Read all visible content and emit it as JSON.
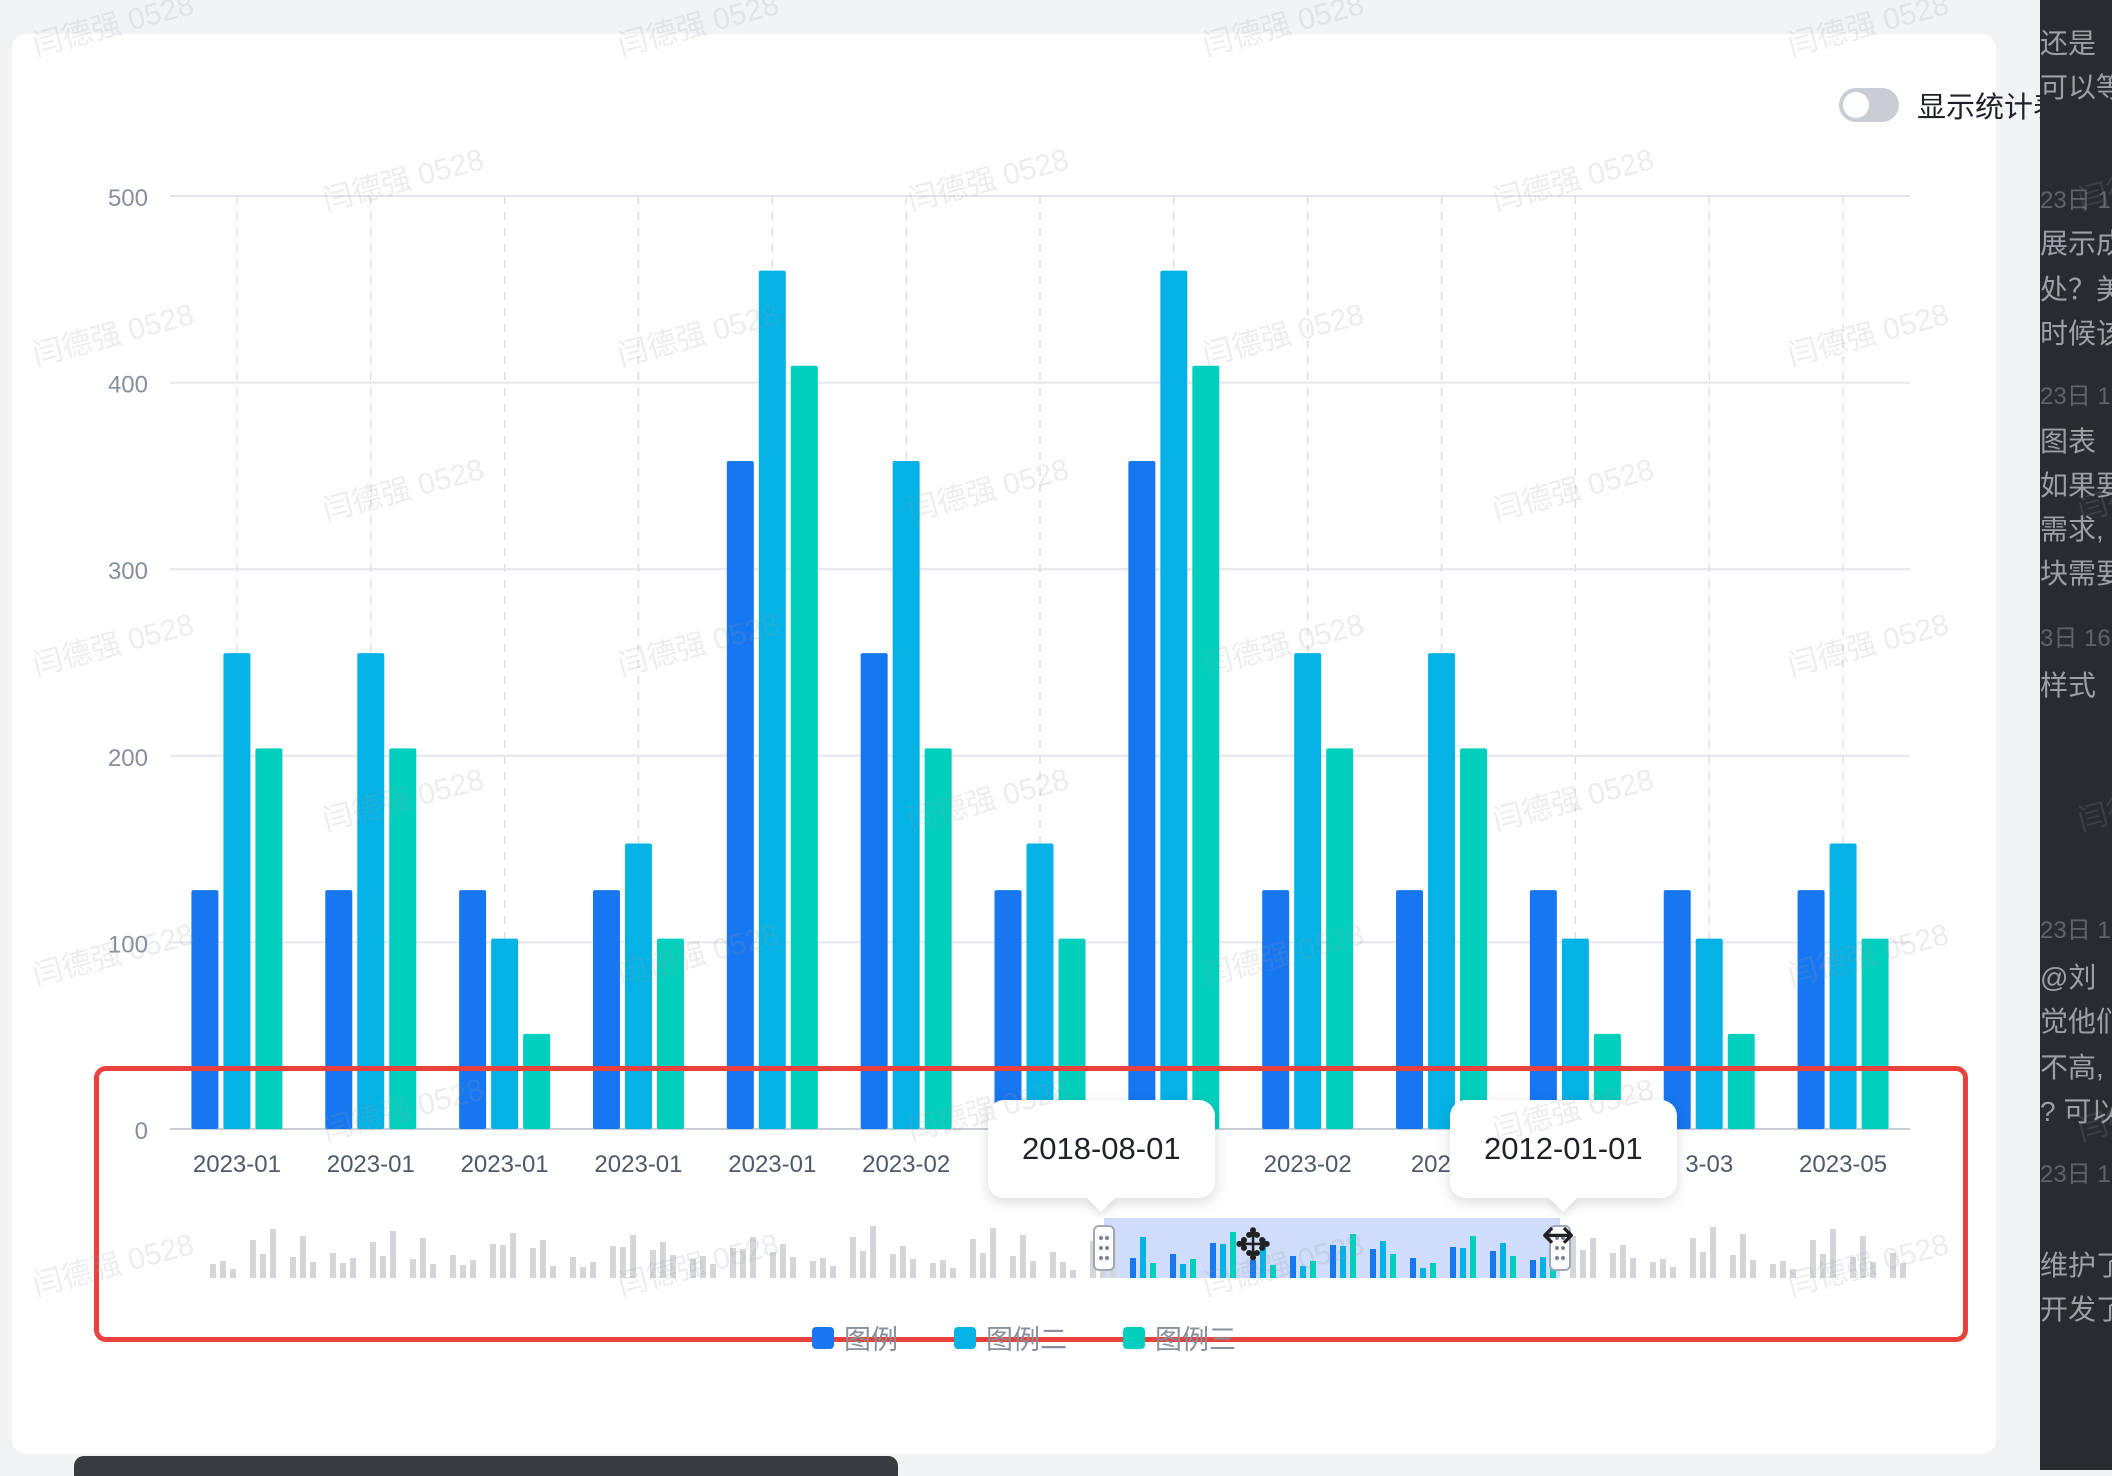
{
  "toggle": {
    "label": "显示统计表",
    "on": false
  },
  "watermark_text": "闫德强 0528",
  "colors": {
    "series1": "#1677f0",
    "series2": "#05b2e6",
    "series3": "#00cfbe",
    "highlight": "#e8413e",
    "brush_fill": "#cfdcfa",
    "mini_bar": "#d4d6da"
  },
  "chart_data": {
    "type": "bar",
    "ylim": [
      0,
      500
    ],
    "yticks": [
      0,
      100,
      200,
      300,
      400,
      500
    ],
    "grid": true,
    "legend_position": "bottom",
    "categories": [
      "2023-01",
      "2023-01",
      "2023-01",
      "2023-01",
      "2023-01",
      "2023-02",
      "",
      "",
      "2023-02",
      "2023-",
      "",
      "3-03",
      "2023-05"
    ],
    "series": [
      {
        "name": "图例",
        "color": "#1677f0",
        "values": [
          128,
          128,
          128,
          128,
          358,
          255,
          128,
          358,
          128,
          128,
          128,
          128,
          128
        ]
      },
      {
        "name": "图例二",
        "color": "#05b2e6",
        "values": [
          255,
          255,
          102,
          153,
          460,
          358,
          153,
          460,
          255,
          255,
          102,
          102,
          153
        ]
      },
      {
        "name": "图例三",
        "color": "#00cfbe",
        "values": [
          204,
          204,
          51,
          102,
          409,
          204,
          102,
          409,
          204,
          204,
          51,
          51,
          102
        ]
      }
    ],
    "datazoom": {
      "start_label": "2018-08-01",
      "end_label": "2012-01-01"
    }
  }
}
